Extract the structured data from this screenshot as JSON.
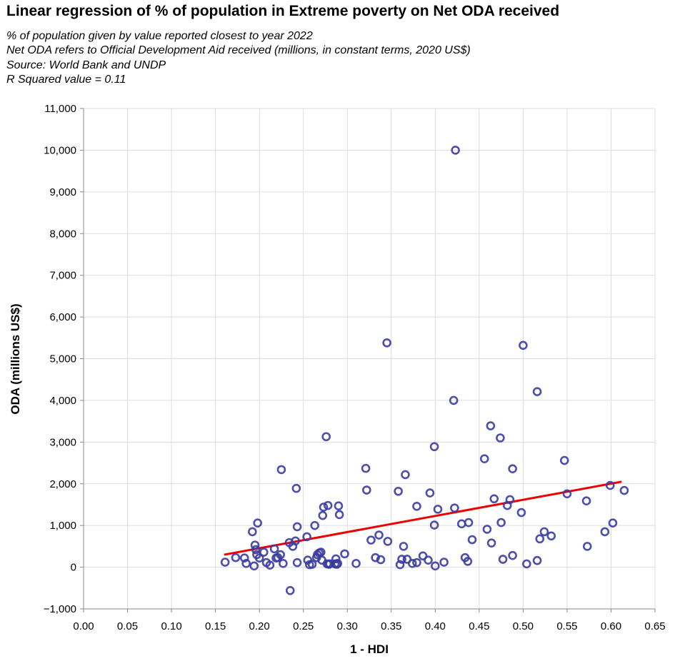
{
  "chart_data": {
    "type": "scatter",
    "title": "Linear regression of % of population in Extreme poverty on Net ODA received",
    "subtitle": [
      "% of population given by value reported closest to year 2022",
      "Net ODA refers to Official Development Aid received (millions, in constant terms, 2020 US$)",
      "Source: World Bank and UNDP",
      "R Squared value = 0.11"
    ],
    "xlabel": "1 - HDI",
    "ylabel": "ODA (millions US$)",
    "xlim": [
      0,
      0.65
    ],
    "ylim": [
      -1000,
      11000
    ],
    "x_ticks": [
      "0.00",
      "0.05",
      "0.10",
      "0.15",
      "0.20",
      "0.25",
      "0.30",
      "0.35",
      "0.40",
      "0.45",
      "0.50",
      "0.55",
      "0.60",
      "0.65"
    ],
    "y_ticks": [
      "−1,000",
      "0",
      "1,000",
      "2,000",
      "3,000",
      "4,000",
      "5,000",
      "6,000",
      "7,000",
      "8,000",
      "9,000",
      "10,000",
      "11,000"
    ],
    "grid": true,
    "colors": {
      "points": "#3b3ba3",
      "regression_line": "#ee0000",
      "grid": "#dddddd",
      "axis": "#888888"
    },
    "points": [
      [
        0.161,
        120
      ],
      [
        0.173,
        230
      ],
      [
        0.183,
        220
      ],
      [
        0.185,
        90
      ],
      [
        0.192,
        850
      ],
      [
        0.194,
        30
      ],
      [
        0.195,
        530
      ],
      [
        0.196,
        420
      ],
      [
        0.197,
        300
      ],
      [
        0.198,
        1060
      ],
      [
        0.2,
        220
      ],
      [
        0.205,
        360
      ],
      [
        0.208,
        110
      ],
      [
        0.212,
        50
      ],
      [
        0.217,
        440
      ],
      [
        0.219,
        220
      ],
      [
        0.221,
        230
      ],
      [
        0.224,
        300
      ],
      [
        0.225,
        2340
      ],
      [
        0.227,
        90
      ],
      [
        0.234,
        590
      ],
      [
        0.235,
        -560
      ],
      [
        0.238,
        500
      ],
      [
        0.241,
        630
      ],
      [
        0.242,
        1890
      ],
      [
        0.243,
        970
      ],
      [
        0.243,
        110
      ],
      [
        0.254,
        730
      ],
      [
        0.255,
        170
      ],
      [
        0.257,
        60
      ],
      [
        0.26,
        70
      ],
      [
        0.263,
        1000
      ],
      [
        0.265,
        230
      ],
      [
        0.266,
        300
      ],
      [
        0.268,
        340
      ],
      [
        0.27,
        360
      ],
      [
        0.271,
        170
      ],
      [
        0.272,
        1240
      ],
      [
        0.273,
        1440
      ],
      [
        0.276,
        3130
      ],
      [
        0.277,
        80
      ],
      [
        0.278,
        1480
      ],
      [
        0.279,
        70
      ],
      [
        0.28,
        80
      ],
      [
        0.286,
        80
      ],
      [
        0.287,
        200
      ],
      [
        0.288,
        70
      ],
      [
        0.289,
        90
      ],
      [
        0.29,
        1470
      ],
      [
        0.291,
        1260
      ],
      [
        0.297,
        320
      ],
      [
        0.31,
        90
      ],
      [
        0.321,
        2370
      ],
      [
        0.322,
        1850
      ],
      [
        0.327,
        650
      ],
      [
        0.332,
        230
      ],
      [
        0.336,
        770
      ],
      [
        0.338,
        180
      ],
      [
        0.345,
        5380
      ],
      [
        0.346,
        620
      ],
      [
        0.358,
        1820
      ],
      [
        0.36,
        60
      ],
      [
        0.362,
        190
      ],
      [
        0.364,
        500
      ],
      [
        0.366,
        2220
      ],
      [
        0.368,
        190
      ],
      [
        0.374,
        90
      ],
      [
        0.379,
        1460
      ],
      [
        0.379,
        110
      ],
      [
        0.386,
        270
      ],
      [
        0.392,
        170
      ],
      [
        0.394,
        1780
      ],
      [
        0.399,
        2890
      ],
      [
        0.399,
        1010
      ],
      [
        0.4,
        30
      ],
      [
        0.403,
        1390
      ],
      [
        0.41,
        120
      ],
      [
        0.421,
        4000
      ],
      [
        0.422,
        1420
      ],
      [
        0.423,
        10000
      ],
      [
        0.43,
        1040
      ],
      [
        0.434,
        230
      ],
      [
        0.437,
        140
      ],
      [
        0.438,
        1070
      ],
      [
        0.442,
        660
      ],
      [
        0.456,
        2600
      ],
      [
        0.459,
        910
      ],
      [
        0.463,
        3390
      ],
      [
        0.464,
        580
      ],
      [
        0.467,
        1640
      ],
      [
        0.474,
        3100
      ],
      [
        0.475,
        1070
      ],
      [
        0.477,
        190
      ],
      [
        0.482,
        1480
      ],
      [
        0.485,
        1620
      ],
      [
        0.488,
        2360
      ],
      [
        0.488,
        280
      ],
      [
        0.498,
        1310
      ],
      [
        0.5,
        5320
      ],
      [
        0.504,
        80
      ],
      [
        0.516,
        4210
      ],
      [
        0.516,
        160
      ],
      [
        0.519,
        680
      ],
      [
        0.524,
        850
      ],
      [
        0.532,
        750
      ],
      [
        0.547,
        2560
      ],
      [
        0.55,
        1760
      ],
      [
        0.572,
        1590
      ],
      [
        0.573,
        500
      ],
      [
        0.593,
        850
      ],
      [
        0.599,
        1960
      ],
      [
        0.602,
        1060
      ],
      [
        0.615,
        1840
      ]
    ],
    "regression_line": [
      [
        0.16,
        300
      ],
      [
        0.612,
        2050
      ]
    ]
  }
}
